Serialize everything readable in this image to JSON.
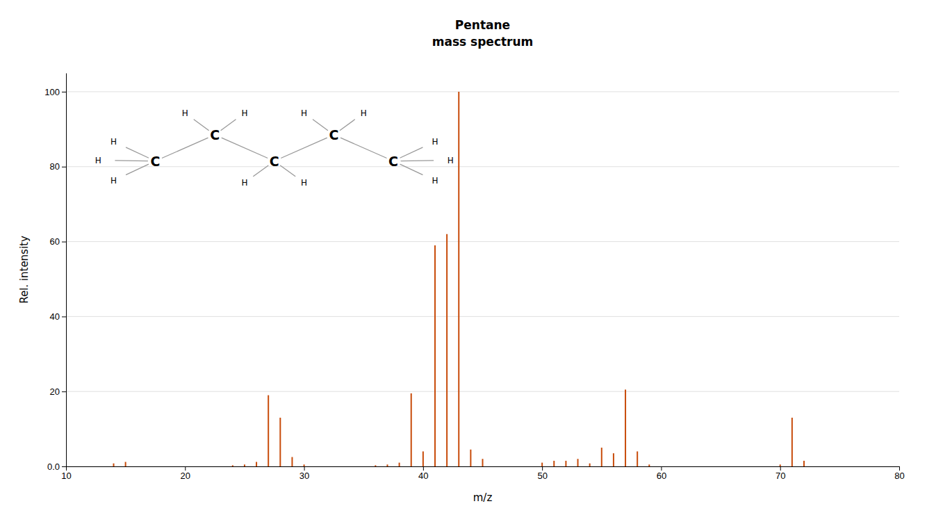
{
  "chart_data": {
    "type": "stem",
    "title": "Pentane",
    "subtitle": "mass spectrum",
    "x_label": "m/z",
    "y_label": "Rel. intensity",
    "color": "#C84B0A",
    "grid": true,
    "xlim": [
      10,
      80
    ],
    "ylim": [
      0,
      105
    ],
    "xticks": [
      10,
      20,
      30,
      40,
      50,
      60,
      70,
      80
    ],
    "yticks": [
      {
        "value": 0.0,
        "label": "0.0"
      },
      20,
      40,
      60,
      80,
      100
    ],
    "x": [
      14,
      15,
      24,
      25,
      26,
      27,
      28,
      29,
      30,
      36,
      37,
      38,
      39,
      40,
      41,
      42,
      43,
      44,
      45,
      50,
      51,
      52,
      53,
      54,
      55,
      56,
      57,
      58,
      59,
      70,
      71,
      72
    ],
    "values": [
      0.8,
      1.2,
      0.3,
      0.5,
      1.2,
      19.0,
      13.0,
      2.5,
      0.5,
      0.3,
      0.5,
      1.0,
      19.5,
      4.0,
      59.0,
      62.0,
      100.0,
      4.5,
      2.0,
      1.0,
      1.5,
      1.5,
      2.0,
      0.8,
      5.0,
      3.5,
      20.5,
      4.0,
      0.5,
      0.5,
      13.0,
      1.5
    ],
    "annotations": [
      {
        "text": "H",
        "x": 14.0,
        "y": 86.7
      },
      {
        "text": "H",
        "x": 12.7,
        "y": 81.7
      },
      {
        "text": "H",
        "x": 14.0,
        "y": 76.3
      },
      {
        "text": "H",
        "x": 20.0,
        "y": 94.3
      },
      {
        "text": "H",
        "x": 25.0,
        "y": 94.3
      },
      {
        "text": "H",
        "x": 25.0,
        "y": 75.7
      },
      {
        "text": "H",
        "x": 30.0,
        "y": 75.7
      },
      {
        "text": "H",
        "x": 30.0,
        "y": 94.3
      },
      {
        "text": "H",
        "x": 35.0,
        "y": 94.3
      },
      {
        "text": "H",
        "x": 41.0,
        "y": 86.7
      },
      {
        "text": "H",
        "x": 42.3,
        "y": 81.7
      },
      {
        "text": "H",
        "x": 41.0,
        "y": 76.3
      },
      {
        "text": "C",
        "x": 17.5,
        "y": 81.5
      },
      {
        "text": "C",
        "x": 22.5,
        "y": 88.5
      },
      {
        "text": "C",
        "x": 27.5,
        "y": 81.5
      },
      {
        "text": "C",
        "x": 32.5,
        "y": 88.5
      },
      {
        "text": "C",
        "x": 37.5,
        "y": 81.5
      }
    ]
  }
}
